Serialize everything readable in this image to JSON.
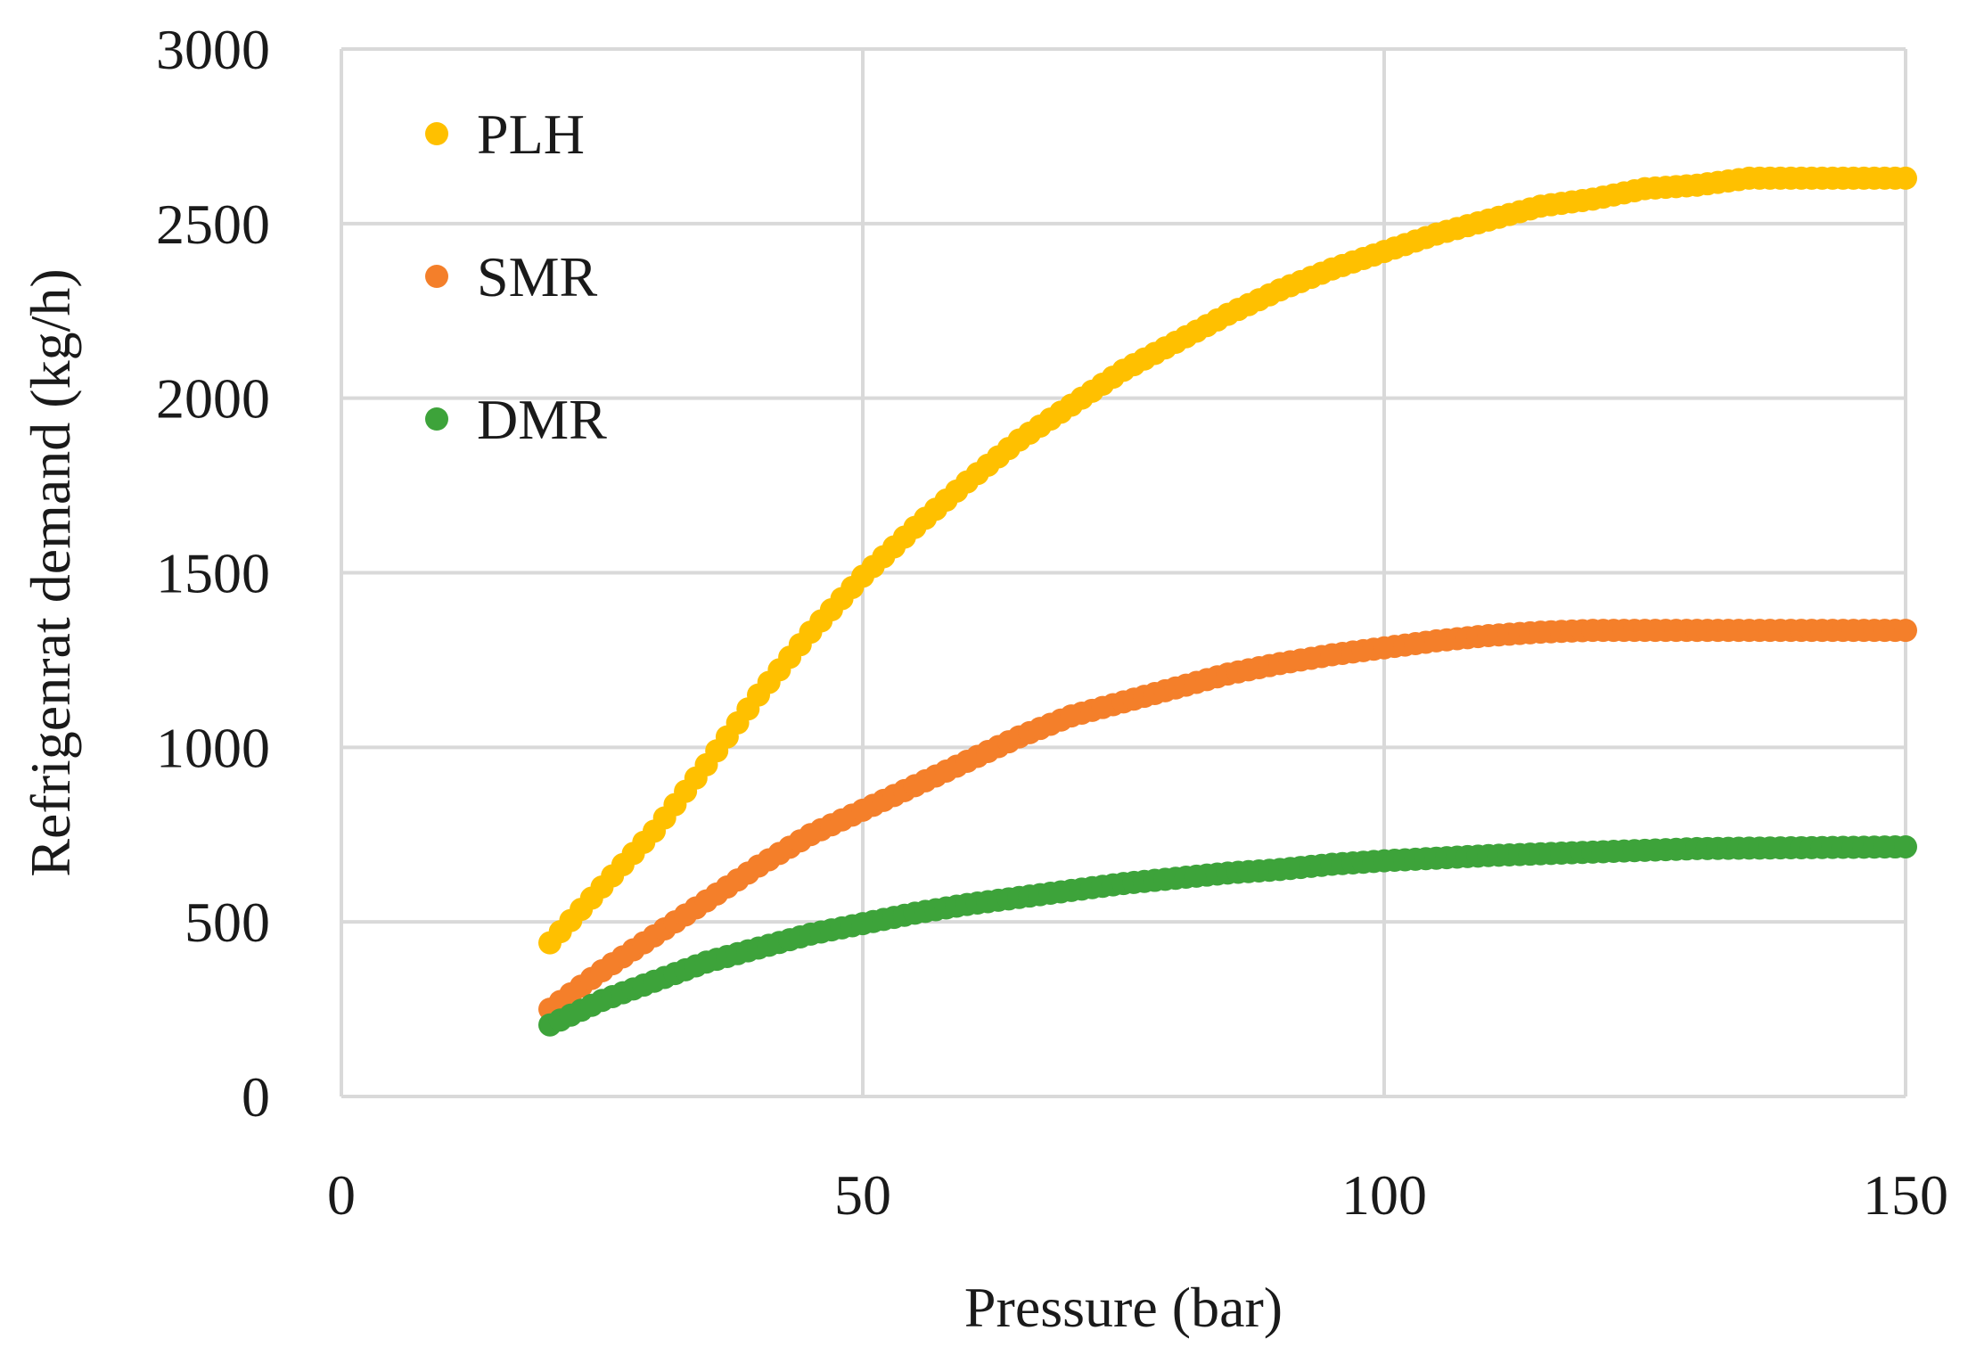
{
  "chart_data": {
    "type": "scatter",
    "title": "",
    "xlabel": "Pressure (bar)",
    "ylabel": "Refrigenrat demand (kg/h)",
    "xlim": [
      0,
      150
    ],
    "ylim": [
      0,
      3000
    ],
    "xticks": [
      0,
      50,
      100,
      150
    ],
    "yticks": [
      0,
      500,
      1000,
      1500,
      2000,
      2500,
      3000
    ],
    "grid": true,
    "legend_position": "top-left",
    "x_range": [
      20,
      150
    ],
    "x_step": 1,
    "series": [
      {
        "name": "PLH",
        "color": "#FFC000",
        "anchors_x": [
          20,
          25,
          30,
          35,
          40,
          45,
          50,
          55,
          60,
          65,
          70,
          75,
          80,
          85,
          90,
          95,
          100,
          105,
          110,
          115,
          120,
          125,
          130,
          135,
          140,
          150
        ],
        "anchors_y": [
          440,
          600,
          760,
          950,
          1150,
          1330,
          1490,
          1630,
          1760,
          1880,
          1980,
          2080,
          2160,
          2240,
          2310,
          2370,
          2420,
          2470,
          2510,
          2550,
          2570,
          2600,
          2610,
          2630,
          2630,
          2630
        ]
      },
      {
        "name": "SMR",
        "color": "#F47F2A",
        "anchors_x": [
          20,
          25,
          30,
          35,
          40,
          45,
          50,
          55,
          60,
          65,
          70,
          75,
          80,
          85,
          90,
          95,
          100,
          105,
          110,
          115,
          120,
          150
        ],
        "anchors_y": [
          250,
          360,
          460,
          560,
          660,
          750,
          820,
          890,
          960,
          1030,
          1090,
          1130,
          1170,
          1210,
          1240,
          1265,
          1285,
          1305,
          1320,
          1330,
          1335,
          1335
        ]
      },
      {
        "name": "DMR",
        "color": "#3DA33A",
        "anchors_x": [
          20,
          25,
          30,
          35,
          40,
          45,
          50,
          55,
          60,
          65,
          70,
          75,
          80,
          85,
          90,
          95,
          100,
          110,
          120,
          130,
          150
        ],
        "anchors_y": [
          205,
          275,
          330,
          385,
          425,
          465,
          495,
          525,
          550,
          570,
          590,
          610,
          625,
          640,
          650,
          665,
          675,
          690,
          700,
          710,
          715
        ]
      }
    ]
  }
}
